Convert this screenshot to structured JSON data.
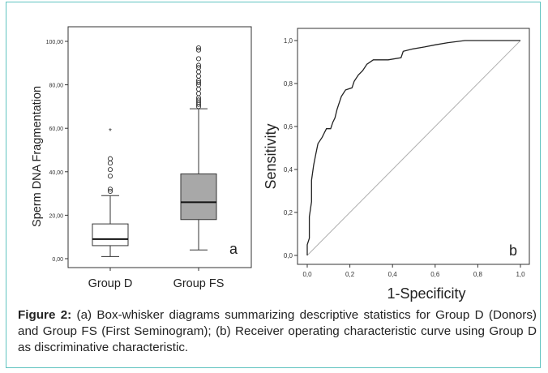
{
  "chart_data": [
    {
      "type": "box",
      "panel_label": "a",
      "ylabel": "Sperm DNA Fragmentation",
      "ylim": [
        0,
        100
      ],
      "yticks": [
        "0,00",
        "20,00",
        "40,00",
        "60,00",
        "80,00",
        "100,00"
      ],
      "categories": [
        "Group D",
        "Group FS"
      ],
      "boxes": [
        {
          "name": "Group D",
          "whisker_low": 1,
          "q1": 6,
          "median": 9,
          "q3": 16,
          "whisker_high": 29,
          "fill": "#ffffff",
          "outliers": [
            31,
            32,
            38,
            41,
            44,
            46
          ],
          "extremes": [
            59
          ]
        },
        {
          "name": "Group FS",
          "whisker_low": 4,
          "q1": 18,
          "median": 26,
          "q3": 39,
          "whisker_high": 69,
          "fill": "#a8a8a8",
          "outliers": [
            70,
            71,
            72,
            73,
            74,
            76,
            78,
            80,
            81,
            82,
            84,
            86,
            88,
            89,
            92,
            96,
            97
          ],
          "extremes": []
        }
      ]
    },
    {
      "type": "line",
      "panel_label": "b",
      "xlabel": "1-Specificity",
      "ylabel": "Sensitivity",
      "xlim": [
        0,
        1
      ],
      "ylim": [
        0,
        1
      ],
      "xticks": [
        "0,0",
        "0,2",
        "0,4",
        "0,6",
        "0,8",
        "1,0"
      ],
      "yticks": [
        "0,0",
        "0,2",
        "0,4",
        "0,6",
        "0,8",
        "1,0"
      ],
      "series": [
        {
          "values": [
            [
              0,
              0
            ],
            [
              0,
              0.05
            ],
            [
              0.01,
              0.08
            ],
            [
              0.01,
              0.18
            ],
            [
              0.02,
              0.25
            ],
            [
              0.02,
              0.35
            ],
            [
              0.03,
              0.42
            ],
            [
              0.04,
              0.47
            ],
            [
              0.05,
              0.52
            ],
            [
              0.07,
              0.55
            ],
            [
              0.08,
              0.57
            ],
            [
              0.09,
              0.59
            ],
            [
              0.11,
              0.59
            ],
            [
              0.12,
              0.62
            ],
            [
              0.13,
              0.64
            ],
            [
              0.14,
              0.68
            ],
            [
              0.15,
              0.71
            ],
            [
              0.16,
              0.74
            ],
            [
              0.18,
              0.77
            ],
            [
              0.21,
              0.78
            ],
            [
              0.22,
              0.81
            ],
            [
              0.24,
              0.84
            ],
            [
              0.26,
              0.86
            ],
            [
              0.28,
              0.89
            ],
            [
              0.31,
              0.91
            ],
            [
              0.38,
              0.91
            ],
            [
              0.44,
              0.92
            ],
            [
              0.45,
              0.95
            ],
            [
              0.49,
              0.96
            ],
            [
              0.55,
              0.97
            ],
            [
              0.6,
              0.98
            ],
            [
              0.66,
              0.99
            ],
            [
              0.74,
              1.0
            ],
            [
              1,
              1
            ]
          ],
          "color": "#222222"
        },
        {
          "values": [
            [
              0,
              0
            ],
            [
              1,
              1
            ]
          ],
          "color": "#b0b0b0"
        }
      ]
    }
  ],
  "caption": {
    "lead": "Figure 2:",
    "text": " (a) Box-whisker diagrams summarizing descriptive statistics for Group D (Donors) and Group FS (First Seminogram); (b) Receiver operating characteristic curve using Group D as discriminative characteristic."
  },
  "colors": {
    "frame": "#5fc3c0"
  }
}
